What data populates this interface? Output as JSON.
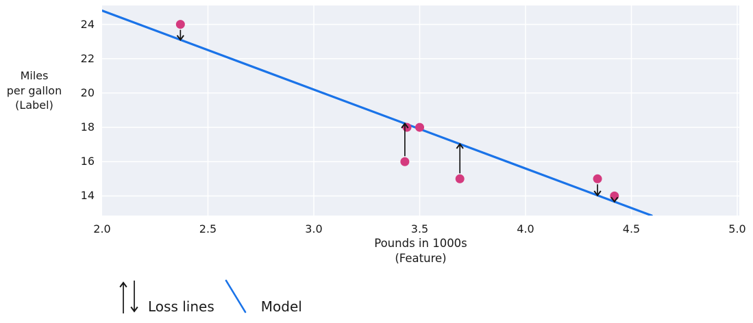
{
  "axes": {
    "y_title": {
      "line1": "Miles",
      "line2": "per gallon",
      "line3": "(Label)"
    },
    "x_title": {
      "line1": "Pounds in 1000s",
      "line2": "(Feature)"
    }
  },
  "legend": {
    "loss_label": "Loss lines",
    "model_label": "Model"
  },
  "colors": {
    "plot_bg": "#edf0f6",
    "grid": "#ffffff",
    "model_line": "#1a73e8",
    "point": "#d43a7e",
    "arrow": "#141414",
    "text": "#1a1a1a"
  },
  "chart_data": {
    "type": "scatter",
    "title": "",
    "xlabel": "Pounds in 1000s (Feature)",
    "ylabel": "Miles per gallon (Label)",
    "xlim": [
      2.0,
      5.0
    ],
    "ylim": [
      12.86,
      25.1
    ],
    "grid": true,
    "legend_position": "bottom",
    "xticks": [
      2.0,
      2.5,
      3.0,
      3.5,
      4.0,
      4.5,
      5.0
    ],
    "x_tick_labels": [
      "2.0",
      "2.5",
      "3.0",
      "3.5",
      "4.0",
      "4.5",
      "5.0"
    ],
    "yticks": [
      24,
      22,
      20,
      18,
      16,
      14
    ],
    "y_tick_labels": [
      "24",
      "22",
      "20",
      "18",
      "16",
      "14"
    ],
    "points": [
      {
        "x": 2.37,
        "y": 24,
        "loss_arrow": true
      },
      {
        "x": 3.43,
        "y": 16,
        "loss_arrow": true
      },
      {
        "x": 3.44,
        "y": 18,
        "loss_arrow": false
      },
      {
        "x": 3.5,
        "y": 18,
        "loss_arrow": false
      },
      {
        "x": 3.69,
        "y": 15,
        "loss_arrow": true
      },
      {
        "x": 4.34,
        "y": 15,
        "loss_arrow": true
      },
      {
        "x": 4.42,
        "y": 14,
        "loss_arrow": true
      }
    ],
    "model": {
      "slope": -4.6,
      "intercept": 34
    }
  }
}
